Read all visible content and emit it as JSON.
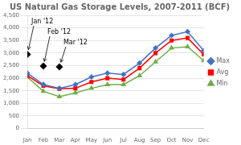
{
  "chart_data": {
    "type": "line",
    "title": "US Natural Gas Storage Levels, 2007-2011 (BCF)",
    "categories": [
      "Jan",
      "Feb",
      "Mar",
      "Apr",
      "May",
      "Jun",
      "Jul",
      "Aug",
      "Sep",
      "Oct",
      "Nov",
      "Dec"
    ],
    "series": [
      {
        "name": "Max",
        "color": "#4472C4",
        "marker": "diamond",
        "line_style": "solid",
        "values": [
          2200,
          1750,
          1600,
          1750,
          2050,
          2200,
          2150,
          2600,
          3200,
          3700,
          3850,
          3100
        ]
      },
      {
        "name": "Avg",
        "color": "#FF0000",
        "marker": "square",
        "line_style": "solid",
        "values": [
          2100,
          1700,
          1580,
          1600,
          1850,
          2000,
          1950,
          2400,
          3000,
          3500,
          3600,
          2950
        ]
      },
      {
        "name": "Min",
        "color": "#70AD47",
        "marker": "triangle",
        "line_style": "solid",
        "values": [
          2050,
          1480,
          1270,
          1420,
          1600,
          1750,
          1750,
          2100,
          2650,
          3200,
          3250,
          2700
        ]
      },
      {
        "color": "#000000",
        "marker": "diamond",
        "line_style": "none",
        "values": [
          2950,
          2480,
          2450,
          null,
          null,
          null,
          null,
          null,
          null,
          null,
          null,
          null
        ]
      }
    ],
    "annotations": [
      {
        "text": "Jan '12",
        "x": "Jan",
        "y": 2950
      },
      {
        "text": "Feb '12",
        "x": "Feb",
        "y": 2480
      },
      {
        "text": "Mar '12",
        "x": "Mar",
        "y": 2450
      }
    ],
    "ylim": [
      0,
      4500
    ],
    "yticks": [
      0,
      500,
      {
        "value": 1000,
        "label": "1,000"
      },
      {
        "value": 1500,
        "label": "1,500"
      },
      {
        "value": 2000,
        "label": "2,000"
      },
      {
        "value": 2500,
        "label": "2,500"
      },
      {
        "value": 3000,
        "label": "3,000"
      },
      {
        "value": 3500,
        "label": "3,500"
      },
      {
        "value": 4000,
        "label": "4,000"
      },
      {
        "value": 4500,
        "label": "4,500"
      }
    ],
    "grid": "y",
    "legend": "right"
  }
}
